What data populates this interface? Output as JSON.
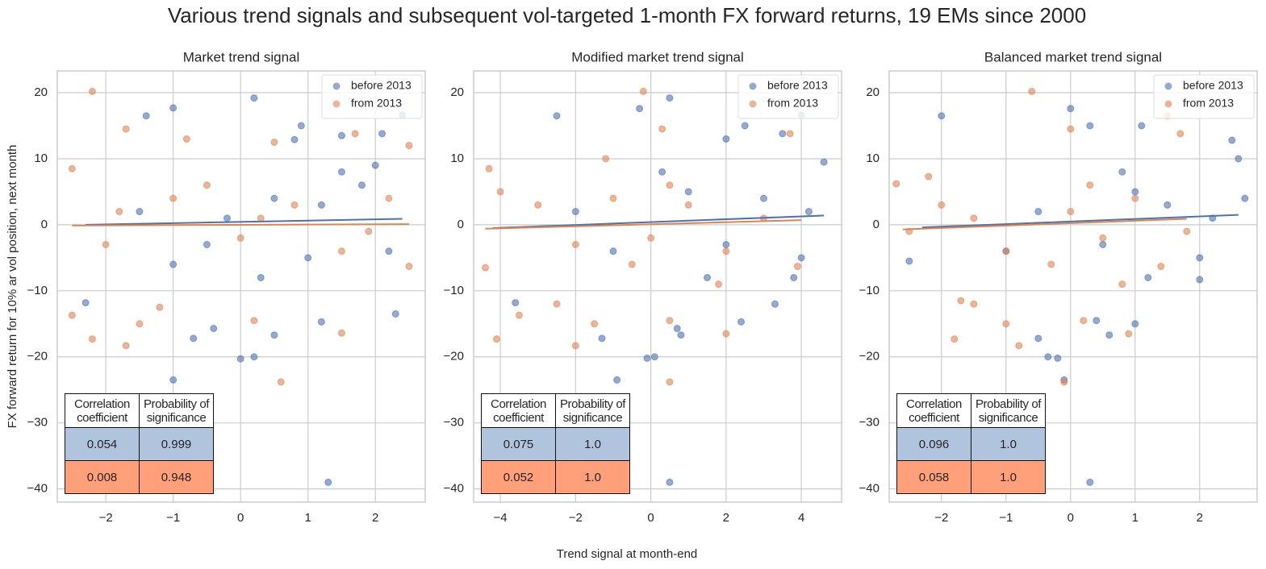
{
  "figure": {
    "title": "Various trend signals and subsequent vol-targeted 1-month FX forward returns, 19 EMs since 2000",
    "x_label": "Trend signal at month-end"
  },
  "chart_data": [
    {
      "type": "scatter",
      "title": "Market trend signal",
      "y_label": "FX forward return for 10% ar vol position, next month",
      "xlim": [
        -2.72,
        2.74
      ],
      "ylim": [
        -42,
        23.3
      ],
      "xticks": [
        {
          "value": -2,
          "label": "−2"
        },
        {
          "value": -1,
          "label": "−1"
        },
        0,
        1,
        2
      ],
      "yticks": [
        {
          "value": -40,
          "label": "−40"
        },
        {
          "value": -30,
          "label": "−30"
        },
        {
          "value": -20,
          "label": "−20"
        },
        {
          "value": -10,
          "label": "−10"
        },
        0,
        10,
        20
      ],
      "grid": true,
      "legend": "upper right",
      "series": [
        {
          "name": "before 2013",
          "color": "#4c72b0",
          "x": [
            0.2,
            -1.0,
            -1.4,
            2.4,
            1.3,
            -1.0,
            0.0,
            0.2,
            0.5,
            -0.7,
            2.1,
            0.9,
            1.5,
            -0.4,
            1.2,
            2.3,
            -2.3,
            0.8,
            -1.5,
            -0.5,
            0.5,
            1.0,
            1.8,
            2.2,
            -0.2,
            1.5,
            0.3,
            2.0,
            -1.0,
            1.2
          ],
          "values": [
            19.2,
            17.7,
            16.5,
            16.6,
            -39,
            -23.5,
            -20.3,
            -20,
            -16.7,
            -17.2,
            13.8,
            15,
            13.5,
            -15.7,
            -14.7,
            -13.5,
            -11.8,
            12.9,
            2,
            -3,
            4,
            -5,
            6,
            -4,
            1,
            8,
            -8,
            9,
            -6,
            3
          ],
          "fit": {
            "x": [
              -2.3,
              2.4
            ],
            "values": [
              0,
              0.9
            ]
          }
        },
        {
          "name": "from 2013",
          "color": "#dd8452",
          "x": [
            -2.2,
            -1.7,
            0.6,
            -1.7,
            -2.2,
            1.5,
            -2.5,
            2.5,
            1.7,
            -0.8,
            -2.5,
            -1.5,
            -1.2,
            0.2,
            0.5,
            2.5,
            -2.0,
            -1.0,
            0.0,
            0.8,
            1.5,
            -0.5,
            0.3,
            1.9,
            -1.8,
            2.2
          ],
          "values": [
            20.2,
            14.5,
            -23.8,
            -18.3,
            -17.3,
            -16.4,
            8.5,
            12,
            13.8,
            13,
            -13.7,
            -15,
            -12.5,
            -14.5,
            12.5,
            -6.3,
            -3,
            4,
            -2,
            3,
            -4,
            6,
            1,
            -1,
            2,
            4
          ],
          "fit": {
            "x": [
              -2.5,
              2.5
            ],
            "values": [
              -0.1,
              0.1
            ]
          }
        }
      ],
      "table": {
        "columns": [
          "Correlation coefficient",
          "Probability of significance"
        ],
        "rows": [
          [
            "0.054",
            "0.999"
          ],
          [
            "0.008",
            "0.948"
          ]
        ],
        "row_colors": [
          "#b0c4de",
          "#ffa07a"
        ]
      }
    },
    {
      "type": "scatter",
      "title": "Modified market trend signal",
      "xlim": [
        -4.71,
        5.07
      ],
      "ylim": [
        -42,
        23.3
      ],
      "xticks": [
        {
          "value": -4,
          "label": "−4"
        },
        {
          "value": -2,
          "label": "−2"
        },
        0,
        2,
        4
      ],
      "yticks": [
        {
          "value": -40,
          "label": "−40"
        },
        {
          "value": -30,
          "label": "−30"
        },
        {
          "value": -20,
          "label": "−20"
        },
        {
          "value": -10,
          "label": "−10"
        },
        0,
        10,
        20
      ],
      "grid": true,
      "legend": "upper right",
      "series": [
        {
          "name": "before 2013",
          "color": "#4c72b0",
          "x": [
            0.5,
            -0.3,
            -2.5,
            4.0,
            0.5,
            -0.9,
            -0.1,
            0.1,
            0.8,
            -1.3,
            3.5,
            2.5,
            2.0,
            0.7,
            2.4,
            3.3,
            -3.6,
            4.6,
            1,
            2,
            3,
            -1,
            -2,
            4,
            0.3,
            1.5,
            4.2,
            3.8
          ],
          "values": [
            19.2,
            17.6,
            16.5,
            16.6,
            -39,
            -23.5,
            -20.2,
            -20,
            -16.7,
            -17.2,
            13.8,
            15,
            13,
            -15.7,
            -14.7,
            -12,
            -11.8,
            9.5,
            5,
            -3,
            4,
            -4,
            2,
            -5,
            8,
            -8,
            2,
            -8
          ],
          "fit": {
            "x": [
              -4.2,
              4.6
            ],
            "values": [
              -0.5,
              1.4
            ]
          }
        },
        {
          "name": "from 2013",
          "color": "#dd8452",
          "x": [
            -0.2,
            0.5,
            -4.1,
            -2.0,
            2.0,
            -4.3,
            -1.2,
            0.3,
            3.7,
            -4.4,
            -3.5,
            -1.5,
            -2.5,
            0.5,
            3.9,
            -3,
            -2,
            -1,
            0,
            1,
            2,
            0.5,
            -0.5,
            3,
            -4,
            1.8
          ],
          "values": [
            20.2,
            -23.8,
            -17.3,
            -18.3,
            -16.5,
            8.5,
            10,
            14.5,
            13.8,
            -6.5,
            -13.7,
            -15,
            -12,
            -14.5,
            -6.3,
            3,
            -3,
            4,
            -2,
            3,
            -4,
            6,
            -6,
            1,
            5,
            -9
          ],
          "fit": {
            "x": [
              -4.4,
              4.0
            ],
            "values": [
              -0.6,
              0.7
            ]
          }
        }
      ],
      "table": {
        "columns": [
          "Correlation coefficient",
          "Probability of significance"
        ],
        "rows": [
          [
            "0.075",
            "1.0"
          ],
          [
            "0.052",
            "1.0"
          ]
        ],
        "row_colors": [
          "#b0c4de",
          "#ffa07a"
        ]
      }
    },
    {
      "type": "scatter",
      "title": "Balanced market trend signal",
      "xlim": [
        -2.81,
        2.89
      ],
      "ylim": [
        -42,
        23.3
      ],
      "xticks": [
        {
          "value": -2,
          "label": "−2"
        },
        {
          "value": -1,
          "label": "−1"
        },
        0,
        1,
        2
      ],
      "yticks": [
        {
          "value": -40,
          "label": "−40"
        },
        {
          "value": -30,
          "label": "−30"
        },
        {
          "value": -20,
          "label": "−20"
        },
        {
          "value": -10,
          "label": "−10"
        },
        0,
        10,
        20
      ],
      "grid": true,
      "legend": "upper right",
      "series": [
        {
          "name": "before 2013",
          "color": "#4c72b0",
          "x": [
            0.0,
            -2.0,
            0.3,
            1.1,
            2.5,
            0.3,
            -0.1,
            -0.2,
            -0.35,
            0.6,
            -0.5,
            0.4,
            1.0,
            2.0,
            -2.5,
            2.6,
            2.7,
            1,
            0.5,
            1.5,
            -1,
            2,
            0.8,
            1.2,
            -0.5,
            2.2
          ],
          "values": [
            17.6,
            16.5,
            15,
            15,
            12.8,
            -39,
            -23.5,
            -20.2,
            -20,
            -16.7,
            -17.2,
            -14.5,
            -15,
            -8.3,
            -5.5,
            10,
            4,
            5,
            -3,
            3,
            -4,
            -5,
            8,
            -8,
            2,
            1
          ],
          "fit": {
            "x": [
              -2.3,
              2.6
            ],
            "values": [
              -0.4,
              1.5
            ]
          }
        },
        {
          "name": "from 2013",
          "color": "#dd8452",
          "x": [
            -0.6,
            0.0,
            -0.1,
            -1.8,
            -0.8,
            0.9,
            -2.7,
            -2.2,
            1.7,
            1.5,
            -1.7,
            -1.0,
            -1.5,
            0.2,
            1.4,
            -2,
            -1,
            0,
            0.5,
            1,
            -1.5,
            0.3,
            -0.3,
            1.8,
            -2.5,
            0.8
          ],
          "values": [
            20.2,
            14.5,
            -23.8,
            -17.3,
            -18.3,
            -16.5,
            6.2,
            7.3,
            13.8,
            16.5,
            -11.5,
            -15,
            -12,
            -14.5,
            -6.3,
            3,
            -4,
            2,
            -2,
            4,
            1,
            6,
            -6,
            -1,
            -1,
            -9
          ],
          "fit": {
            "x": [
              -2.6,
              1.8
            ],
            "values": [
              -0.7,
              0.9
            ]
          }
        }
      ],
      "table": {
        "columns": [
          "Correlation coefficient",
          "Probability of significance"
        ],
        "rows": [
          [
            "0.096",
            "1.0"
          ],
          [
            "0.058",
            "1.0"
          ]
        ],
        "row_colors": [
          "#b0c4de",
          "#ffa07a"
        ]
      }
    }
  ]
}
